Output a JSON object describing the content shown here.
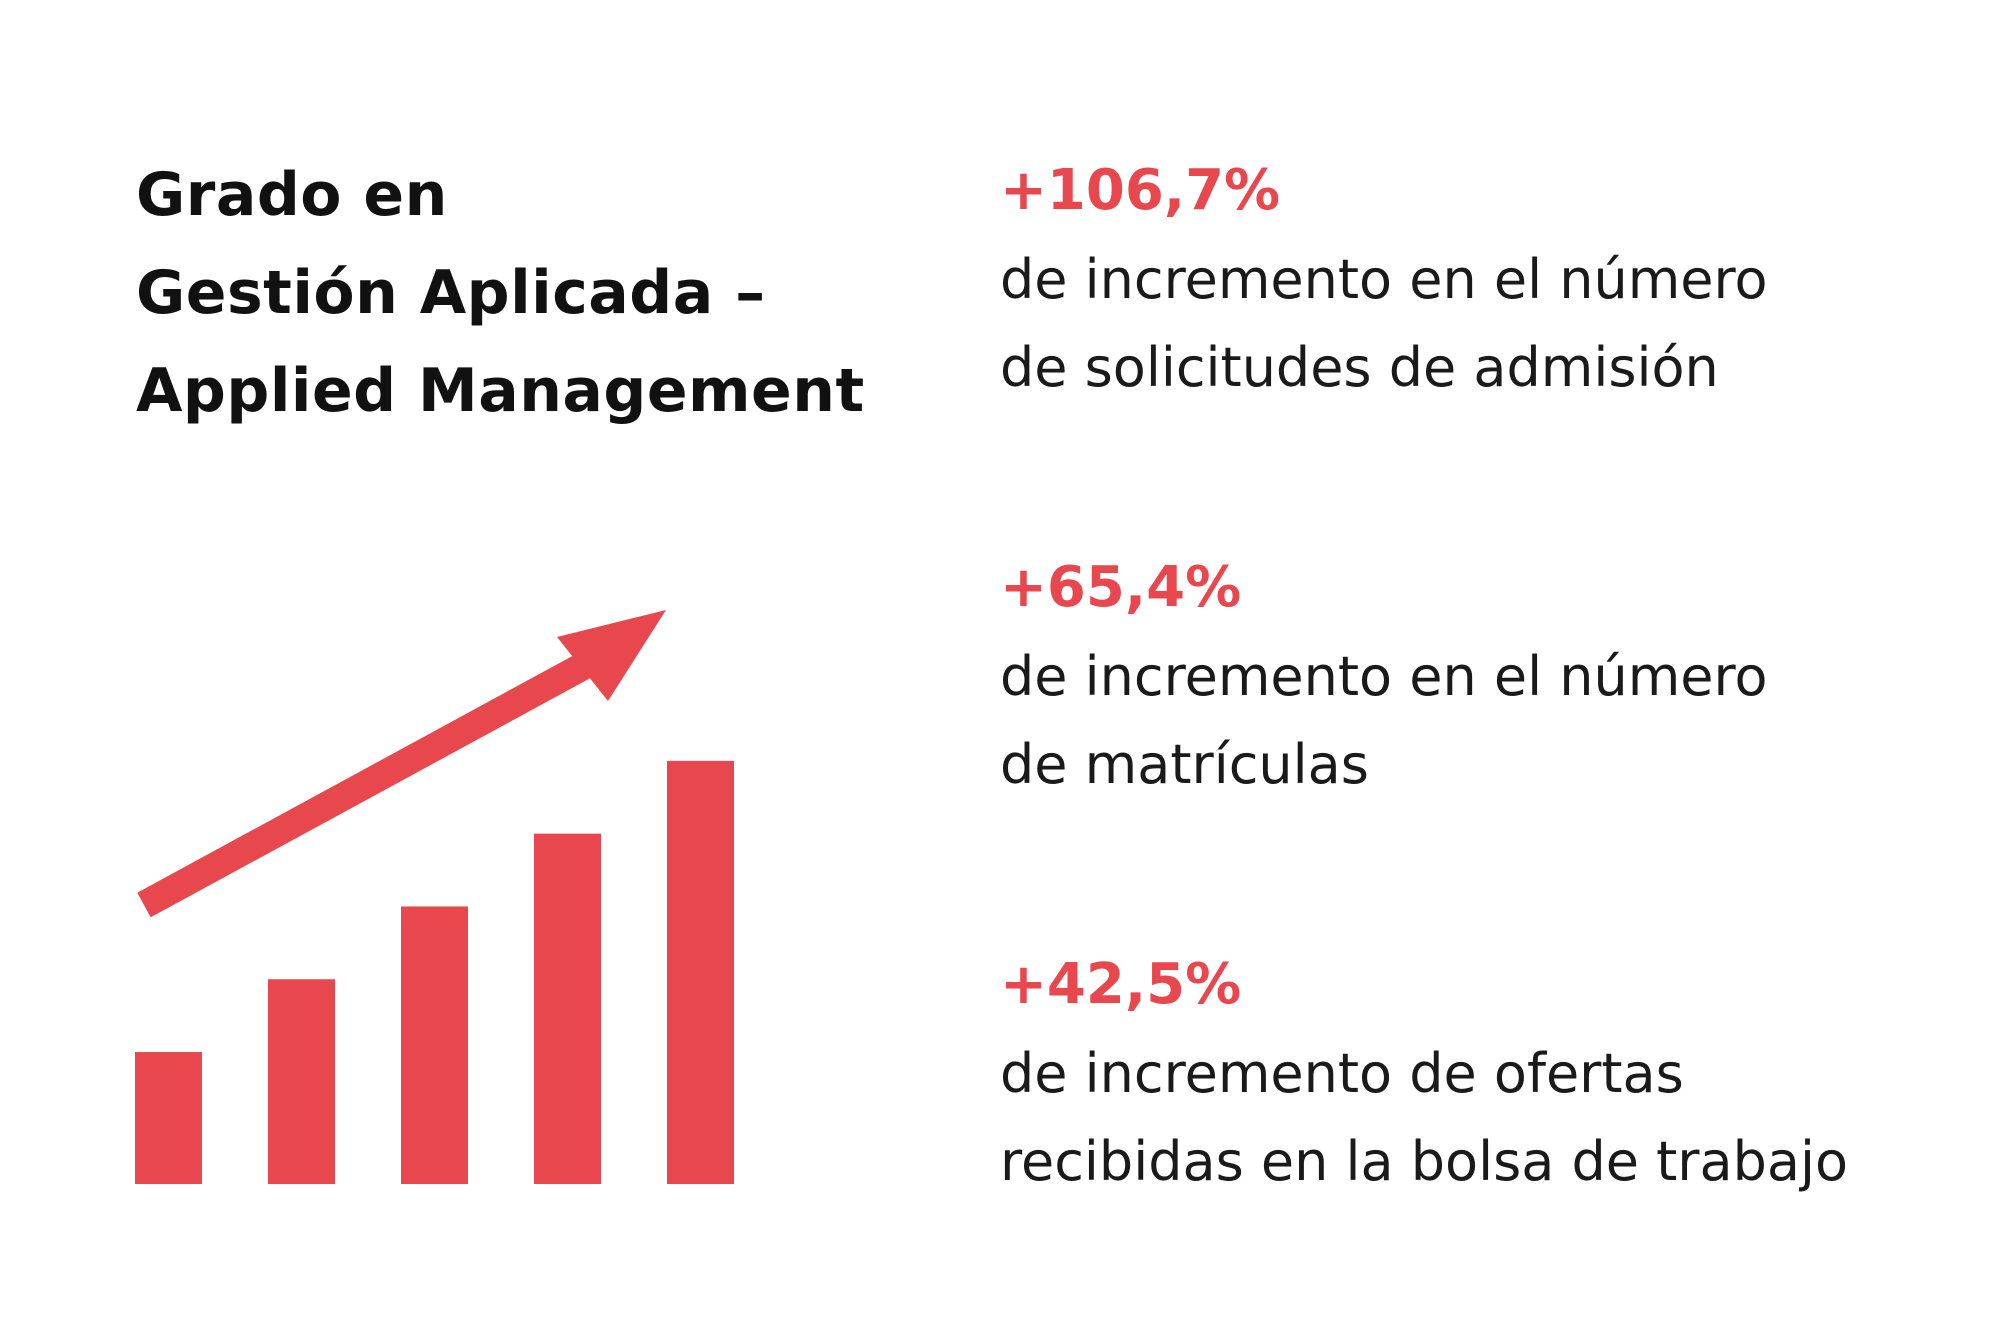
{
  "colors": {
    "accent": "#e8474d",
    "text": "#111111",
    "background": "#ffffff"
  },
  "title": {
    "line1": "Grado en",
    "line2": "Gestión Aplicada –",
    "line3": "Applied Management"
  },
  "graphic": {
    "icon": "growth-chart-icon",
    "bar_levels": [
      0.29,
      0.45,
      0.61,
      0.77,
      0.93
    ]
  },
  "stats": [
    {
      "value": "+106,7%",
      "line1": "de incremento en el número",
      "line2": "de solicitudes de admisión"
    },
    {
      "value": "+65,4%",
      "line1": "de incremento en el número",
      "line2": "de matrículas"
    },
    {
      "value": "+42,5%",
      "line1": "de incremento de ofertas",
      "line2": "recibidas en la bolsa de trabajo"
    }
  ]
}
